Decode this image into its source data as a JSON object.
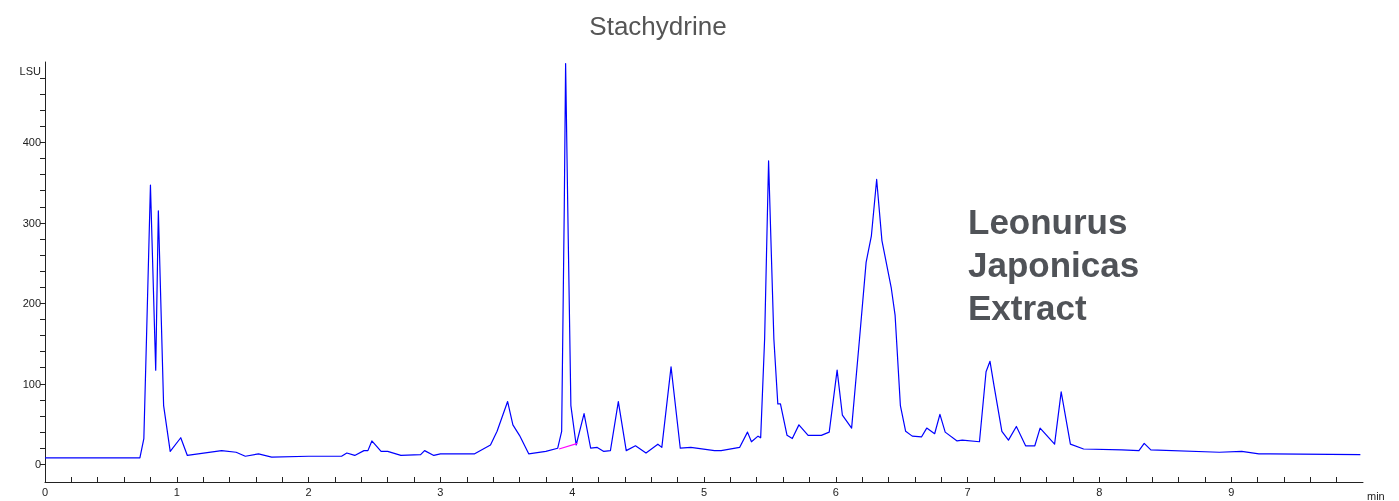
{
  "chart_data": {
    "type": "line",
    "title": "Stachydrine",
    "xlabel": "min",
    "ylabel": "LSU",
    "annotations": [
      "Leonurus Japonicas Extract"
    ],
    "xlim": [
      0,
      10
    ],
    "ylim": [
      -22,
      500
    ],
    "xticks": [
      0,
      {
        "value": 0.2,
        "label": null
      },
      {
        "value": 0.4,
        "label": null
      },
      {
        "value": 0.6,
        "label": null
      },
      {
        "value": 0.8,
        "label": null
      },
      1,
      {
        "value": 1.2,
        "label": null
      },
      {
        "value": 1.4,
        "label": null
      },
      {
        "value": 1.6,
        "label": null
      },
      {
        "value": 1.8,
        "label": null
      },
      2,
      {
        "value": 2.2,
        "label": null
      },
      {
        "value": 2.4,
        "label": null
      },
      {
        "value": 2.6,
        "label": null
      },
      {
        "value": 2.8,
        "label": null
      },
      3,
      {
        "value": 3.2,
        "label": null
      },
      {
        "value": 3.4,
        "label": null
      },
      {
        "value": 3.6,
        "label": null
      },
      {
        "value": 3.8,
        "label": null
      },
      4,
      {
        "value": 4.2,
        "label": null
      },
      {
        "value": 4.4,
        "label": null
      },
      {
        "value": 4.6,
        "label": null
      },
      {
        "value": 4.8,
        "label": null
      },
      5,
      {
        "value": 5.2,
        "label": null
      },
      {
        "value": 5.4,
        "label": null
      },
      {
        "value": 5.6,
        "label": null
      },
      {
        "value": 5.8,
        "label": null
      },
      6,
      {
        "value": 6.2,
        "label": null
      },
      {
        "value": 6.4,
        "label": null
      },
      {
        "value": 6.6,
        "label": null
      },
      {
        "value": 6.8,
        "label": null
      },
      7,
      {
        "value": 7.2,
        "label": null
      },
      {
        "value": 7.4,
        "label": null
      },
      {
        "value": 7.6,
        "label": null
      },
      {
        "value": 7.8,
        "label": null
      },
      8,
      {
        "value": 8.2,
        "label": null
      },
      {
        "value": 8.4,
        "label": null
      },
      {
        "value": 8.6,
        "label": null
      },
      {
        "value": 8.8,
        "label": null
      },
      9,
      {
        "value": 9.2,
        "label": null
      },
      {
        "value": 9.4,
        "label": null
      },
      {
        "value": 9.6,
        "label": null
      },
      {
        "value": 9.8,
        "label": null
      }
    ],
    "yticks": [
      0,
      {
        "value": 20,
        "label": null
      },
      {
        "value": 40,
        "label": null
      },
      {
        "value": 60,
        "label": null
      },
      {
        "value": 80,
        "label": null
      },
      100,
      {
        "value": 120,
        "label": null
      },
      {
        "value": 140,
        "label": null
      },
      {
        "value": 160,
        "label": null
      },
      {
        "value": 180,
        "label": null
      },
      200,
      {
        "value": 220,
        "label": null
      },
      {
        "value": 240,
        "label": null
      },
      {
        "value": 260,
        "label": null
      },
      {
        "value": 280,
        "label": null
      },
      300,
      {
        "value": 320,
        "label": null
      },
      {
        "value": 340,
        "label": null
      },
      {
        "value": 360,
        "label": null
      },
      {
        "value": 380,
        "label": null
      },
      400,
      {
        "value": 420,
        "label": null
      },
      {
        "value": 440,
        "label": null
      },
      {
        "value": 460,
        "label": null
      },
      {
        "value": 480,
        "label": null
      }
    ],
    "grid": false,
    "marker": "none",
    "line_style": "solid",
    "series": [
      {
        "color": "#0000ff",
        "x": [
          0,
          0.72,
          0.75,
          0.77,
          0.8,
          0.84,
          0.86,
          0.9,
          0.95,
          1.03,
          1.08,
          1.34,
          1.45,
          1.52,
          1.62,
          1.72,
          2.0,
          2.25,
          2.29,
          2.35,
          2.42,
          2.45,
          2.48,
          2.55,
          2.6,
          2.7,
          2.85,
          2.88,
          2.95,
          3.0,
          3.06,
          3.26,
          3.38,
          3.43,
          3.51,
          3.55,
          3.6,
          3.67,
          3.8,
          3.89,
          3.92,
          3.94,
          3.95,
          3.97,
          3.99,
          4.03,
          4.09,
          4.14,
          4.19,
          4.24,
          4.29,
          4.35,
          4.41,
          4.48,
          4.56,
          4.65,
          4.68,
          4.75,
          4.82,
          4.9,
          5.08,
          5.13,
          5.27,
          5.33,
          5.36,
          5.41,
          5.43,
          5.46,
          5.49,
          5.53,
          5.56,
          5.58,
          5.63,
          5.67,
          5.72,
          5.79,
          5.89,
          5.95,
          6.01,
          6.05,
          6.12,
          6.18,
          6.23,
          6.27,
          6.31,
          6.35,
          6.42,
          6.45,
          6.49,
          6.53,
          6.58,
          6.65,
          6.69,
          6.75,
          6.79,
          6.83,
          6.92,
          6.96,
          7.09,
          7.14,
          7.17,
          7.2,
          7.26,
          7.31,
          7.37,
          7.44,
          7.51,
          7.55,
          7.66,
          7.71,
          7.78,
          7.88,
          8.17,
          8.3,
          8.34,
          8.39,
          8.91,
          9.08,
          9.21,
          9.98
        ],
        "values": [
          8,
          8,
          32,
          156,
          347,
          117,
          315,
          73,
          16,
          33,
          11,
          17,
          15,
          10,
          13,
          9,
          10,
          10,
          14,
          11,
          17,
          17,
          29,
          16,
          16,
          11,
          12,
          17,
          11,
          13,
          13,
          13,
          24,
          41,
          78,
          49,
          36,
          13,
          16,
          20,
          41,
          321,
          498,
          280,
          73,
          24,
          63,
          20,
          21,
          16,
          17,
          78,
          17,
          23,
          14,
          25,
          21,
          121,
          20,
          21,
          17,
          17,
          21,
          40,
          28,
          35,
          33,
          156,
          377,
          156,
          75,
          75,
          36,
          32,
          49,
          36,
          36,
          40,
          117,
          61,
          45,
          156,
          251,
          284,
          354,
          278,
          220,
          185,
          73,
          41,
          35,
          34,
          45,
          38,
          62,
          40,
          29,
          30,
          28,
          115,
          128,
          98,
          41,
          30,
          47,
          23,
          23,
          45,
          25,
          90,
          25,
          19,
          18,
          17,
          26,
          18,
          15,
          16,
          13,
          12
        ]
      },
      {
        "color": "#ff00ff",
        "x": [
          3.9,
          4.04
        ],
        "values": [
          19,
          26
        ]
      }
    ]
  }
}
